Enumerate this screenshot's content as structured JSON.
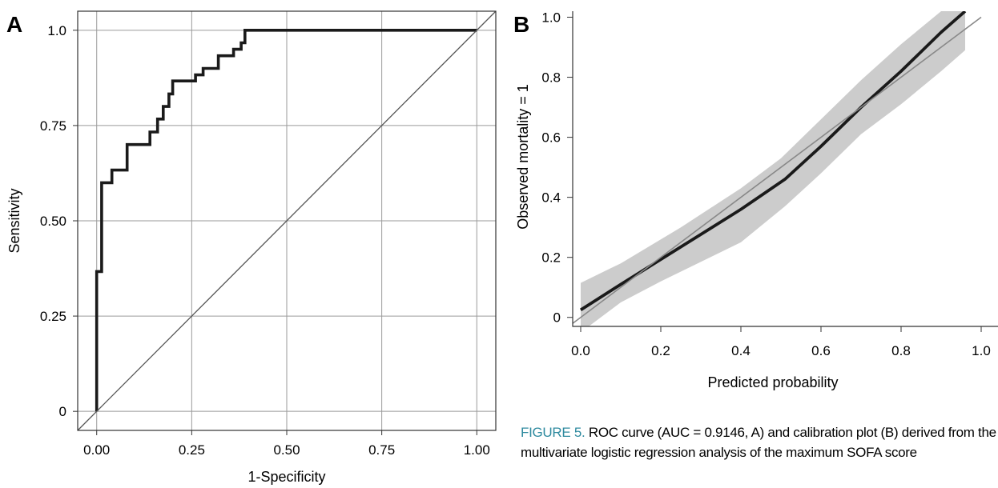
{
  "panel_a": {
    "label": "A",
    "chart_data": {
      "type": "line",
      "title": "",
      "xlabel": "1-Specificity",
      "ylabel": "Sensitivity",
      "xlim": [
        -0.05,
        1.05
      ],
      "ylim": [
        -0.05,
        1.05
      ],
      "x_ticks": [
        0,
        0.25,
        0.5,
        0.75,
        1.0
      ],
      "x_tick_labels": [
        "0.00",
        "0.25",
        "0.50",
        "0.75",
        "1.00"
      ],
      "y_ticks": [
        0,
        0.25,
        0.5,
        0.75,
        1.0
      ],
      "y_tick_labels": [
        "0",
        "0.25",
        "0.50",
        "0.75",
        "1.0"
      ],
      "grid": true,
      "series": [
        {
          "style": "step",
          "color": "#1a1a1a",
          "points": [
            [
              0,
              0
            ],
            [
              0,
              0.367
            ],
            [
              0.013,
              0.367
            ],
            [
              0.013,
              0.6
            ],
            [
              0.04,
              0.6
            ],
            [
              0.04,
              0.633
            ],
            [
              0.08,
              0.633
            ],
            [
              0.08,
              0.7
            ],
            [
              0.14,
              0.7
            ],
            [
              0.14,
              0.733
            ],
            [
              0.16,
              0.733
            ],
            [
              0.16,
              0.767
            ],
            [
              0.175,
              0.767
            ],
            [
              0.175,
              0.8
            ],
            [
              0.19,
              0.8
            ],
            [
              0.19,
              0.833
            ],
            [
              0.2,
              0.833
            ],
            [
              0.2,
              0.867
            ],
            [
              0.26,
              0.867
            ],
            [
              0.26,
              0.883
            ],
            [
              0.28,
              0.883
            ],
            [
              0.28,
              0.9
            ],
            [
              0.32,
              0.9
            ],
            [
              0.32,
              0.933
            ],
            [
              0.36,
              0.933
            ],
            [
              0.36,
              0.95
            ],
            [
              0.38,
              0.95
            ],
            [
              0.38,
              0.967
            ],
            [
              0.39,
              0.967
            ],
            [
              0.39,
              1.0
            ],
            [
              1.0,
              1.0
            ]
          ]
        },
        {
          "style": "reference",
          "color": "#555555",
          "points": [
            [
              -0.05,
              -0.05
            ],
            [
              1.05,
              1.05
            ]
          ]
        }
      ]
    }
  },
  "panel_b": {
    "label": "B",
    "chart_data": {
      "type": "line",
      "title": "",
      "xlabel": "Predicted probability",
      "ylabel": "Observed mortality = 1",
      "xlim": [
        -0.02,
        1.0
      ],
      "ylim": [
        -0.03,
        1.02
      ],
      "x_ticks": [
        0,
        0.2,
        0.4,
        0.6,
        0.8,
        1.0
      ],
      "x_tick_labels": [
        "0.0",
        "0.2",
        "0.4",
        "0.6",
        "0.8",
        "1.0"
      ],
      "y_ticks": [
        0,
        0.2,
        0.4,
        0.6,
        0.8,
        1.0
      ],
      "y_tick_labels": [
        "0",
        "0.2",
        "0.4",
        "0.6",
        "0.8",
        "1.0"
      ],
      "grid": false,
      "confidence_band": {
        "color": "#cccccc",
        "upper": [
          [
            0,
            0.115
          ],
          [
            0.1,
            0.18
          ],
          [
            0.25,
            0.3
          ],
          [
            0.4,
            0.43
          ],
          [
            0.5,
            0.53
          ],
          [
            0.6,
            0.66
          ],
          [
            0.7,
            0.79
          ],
          [
            0.8,
            0.91
          ],
          [
            0.9,
            1.02
          ],
          [
            0.96,
            1.02
          ]
        ],
        "lower": [
          [
            0.96,
            0.89
          ],
          [
            0.9,
            0.82
          ],
          [
            0.8,
            0.71
          ],
          [
            0.7,
            0.61
          ],
          [
            0.6,
            0.48
          ],
          [
            0.51,
            0.37
          ],
          [
            0.4,
            0.25
          ],
          [
            0.2,
            0.12
          ],
          [
            0.1,
            0.05
          ],
          [
            0.02,
            -0.03
          ],
          [
            0,
            -0.03
          ]
        ]
      },
      "series": [
        {
          "style": "fit",
          "color": "#1a1a1a",
          "points": [
            [
              0,
              0.025
            ],
            [
              0.1,
              0.11
            ],
            [
              0.25,
              0.235
            ],
            [
              0.4,
              0.36
            ],
            [
              0.51,
              0.46
            ],
            [
              0.6,
              0.57
            ],
            [
              0.7,
              0.7
            ],
            [
              0.8,
              0.82
            ],
            [
              0.9,
              0.95
            ],
            [
              0.96,
              1.02
            ]
          ]
        },
        {
          "style": "reference",
          "color": "#888888",
          "points": [
            [
              -0.02,
              -0.02
            ],
            [
              1.0,
              1.0
            ]
          ]
        }
      ]
    }
  },
  "caption": {
    "lead": "FIGURE 5.",
    "text": " ROC curve (AUC = 0.9146, A) and calibration plot (B) derived from the multivariate logistic regression analysis of the maximum SOFA score"
  }
}
